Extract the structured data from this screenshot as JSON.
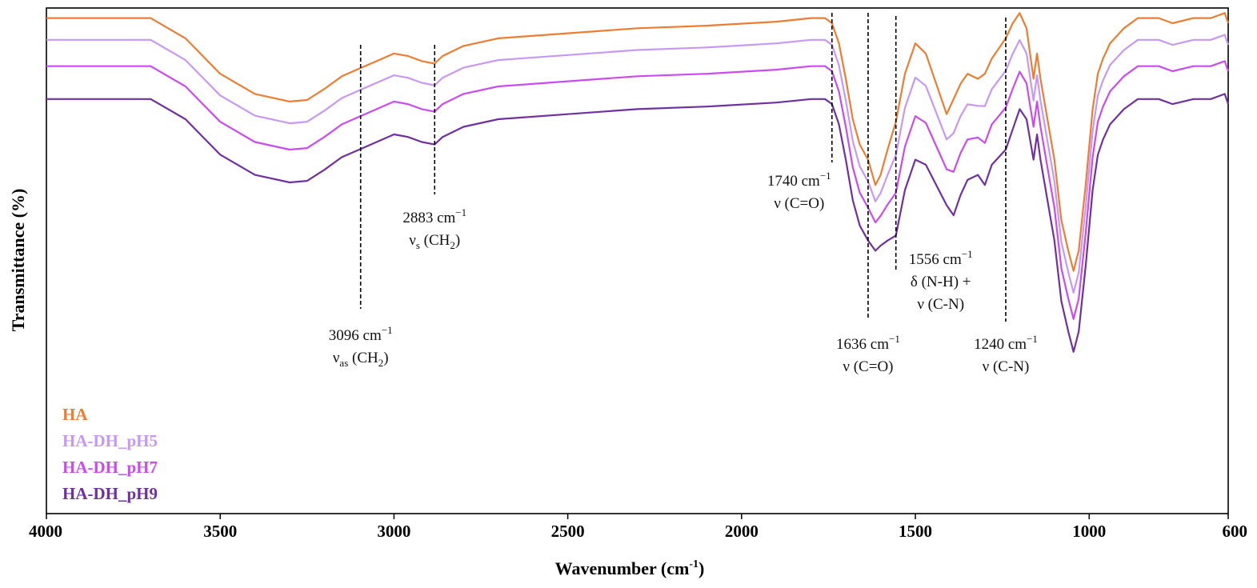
{
  "chart_data": {
    "type": "line",
    "title": "",
    "xlabel": "Wavenumber (cm",
    "xlabel_sup": "-1",
    "xlabel_close": ")",
    "ylabel": "Transmittance (%)",
    "xlim": [
      4000,
      600
    ],
    "ylim": [
      0,
      100
    ],
    "xticks": [
      4000,
      3500,
      3000,
      2500,
      2000,
      1500,
      1000,
      600
    ],
    "legend_position": "bottom-left",
    "series": [
      {
        "name": "HA",
        "color": "#ED7D31",
        "offset": 0,
        "points": [
          [
            4000,
            98
          ],
          [
            3700,
            98
          ],
          [
            3600,
            94
          ],
          [
            3500,
            87
          ],
          [
            3400,
            83
          ],
          [
            3300,
            81.5
          ],
          [
            3250,
            81.8
          ],
          [
            3200,
            84
          ],
          [
            3150,
            86.5
          ],
          [
            3100,
            88
          ],
          [
            3050,
            89.5
          ],
          [
            3000,
            91
          ],
          [
            2960,
            90.5
          ],
          [
            2920,
            89.5
          ],
          [
            2883,
            89
          ],
          [
            2860,
            90.5
          ],
          [
            2800,
            92.5
          ],
          [
            2700,
            94
          ],
          [
            2500,
            95
          ],
          [
            2300,
            96
          ],
          [
            2100,
            96.5
          ],
          [
            1900,
            97.3
          ],
          [
            1800,
            98
          ],
          [
            1760,
            98
          ],
          [
            1740,
            97
          ],
          [
            1720,
            93
          ],
          [
            1700,
            86
          ],
          [
            1680,
            78
          ],
          [
            1660,
            73
          ],
          [
            1636,
            70
          ],
          [
            1615,
            65
          ],
          [
            1600,
            67
          ],
          [
            1580,
            72
          ],
          [
            1556,
            77.5
          ],
          [
            1530,
            87
          ],
          [
            1500,
            93
          ],
          [
            1470,
            91
          ],
          [
            1440,
            85
          ],
          [
            1410,
            79
          ],
          [
            1390,
            82
          ],
          [
            1370,
            85
          ],
          [
            1350,
            87
          ],
          [
            1320,
            86
          ],
          [
            1300,
            87
          ],
          [
            1280,
            90
          ],
          [
            1240,
            94
          ],
          [
            1220,
            97
          ],
          [
            1200,
            99
          ],
          [
            1180,
            96
          ],
          [
            1160,
            86
          ],
          [
            1150,
            91
          ],
          [
            1140,
            86
          ],
          [
            1120,
            78
          ],
          [
            1100,
            70
          ],
          [
            1080,
            58
          ],
          [
            1060,
            52
          ],
          [
            1045,
            48
          ],
          [
            1030,
            52
          ],
          [
            1010,
            65
          ],
          [
            990,
            80
          ],
          [
            975,
            87
          ],
          [
            960,
            90
          ],
          [
            940,
            93
          ],
          [
            900,
            96
          ],
          [
            860,
            98
          ],
          [
            800,
            98
          ],
          [
            760,
            97
          ],
          [
            700,
            98
          ],
          [
            650,
            98
          ],
          [
            610,
            99
          ],
          [
            600,
            97
          ]
        ]
      },
      {
        "name": "HA-DH_pH5",
        "color": "#C898F5",
        "offset": -4.3,
        "points": []
      },
      {
        "name": "HA-DH_pH7",
        "color": "#CB4BF0",
        "offset": -9.5,
        "points": []
      },
      {
        "name": "HA-DH_pH9",
        "color": "#7030A0",
        "offset": -16,
        "points": [
          [
            4000,
            98
          ],
          [
            3700,
            98
          ],
          [
            3600,
            94
          ],
          [
            3500,
            87
          ],
          [
            3400,
            83
          ],
          [
            3300,
            81.5
          ],
          [
            3250,
            81.8
          ],
          [
            3200,
            84
          ],
          [
            3150,
            86.5
          ],
          [
            3100,
            88
          ],
          [
            3050,
            89.5
          ],
          [
            3000,
            91
          ],
          [
            2960,
            90.5
          ],
          [
            2920,
            89.5
          ],
          [
            2883,
            89
          ],
          [
            2860,
            90.5
          ],
          [
            2800,
            92.5
          ],
          [
            2700,
            94
          ],
          [
            2500,
            95
          ],
          [
            2300,
            96
          ],
          [
            2100,
            96.5
          ],
          [
            1900,
            97.3
          ],
          [
            1800,
            98
          ],
          [
            1760,
            98
          ],
          [
            1740,
            97
          ],
          [
            1720,
            93
          ],
          [
            1700,
            86
          ],
          [
            1680,
            78
          ],
          [
            1660,
            73
          ],
          [
            1636,
            70
          ],
          [
            1615,
            68
          ],
          [
            1600,
            69
          ],
          [
            1580,
            70
          ],
          [
            1556,
            71
          ],
          [
            1530,
            80
          ],
          [
            1500,
            86
          ],
          [
            1470,
            85
          ],
          [
            1440,
            81
          ],
          [
            1410,
            77
          ],
          [
            1390,
            75
          ],
          [
            1370,
            79
          ],
          [
            1350,
            82
          ],
          [
            1320,
            83
          ],
          [
            1300,
            81
          ],
          [
            1280,
            85
          ],
          [
            1240,
            88
          ],
          [
            1220,
            92
          ],
          [
            1200,
            96
          ],
          [
            1180,
            94
          ],
          [
            1160,
            86
          ],
          [
            1150,
            91
          ],
          [
            1140,
            86
          ],
          [
            1120,
            78
          ],
          [
            1100,
            70
          ],
          [
            1080,
            58
          ],
          [
            1060,
            52
          ],
          [
            1045,
            48
          ],
          [
            1030,
            52
          ],
          [
            1010,
            65
          ],
          [
            990,
            80
          ],
          [
            975,
            87
          ],
          [
            960,
            90
          ],
          [
            940,
            93
          ],
          [
            900,
            96
          ],
          [
            860,
            98
          ],
          [
            800,
            98
          ],
          [
            760,
            97
          ],
          [
            700,
            98
          ],
          [
            650,
            98
          ],
          [
            610,
            99
          ],
          [
            600,
            97
          ]
        ]
      }
    ],
    "markers": [
      {
        "wavenumber": 3096,
        "line1": "3096 cm",
        "sup": "−1",
        "line2_main": "ν",
        "line2_sub": "as",
        "line2_rest": " (CH",
        "line2_sub2": "2",
        "line2_end": ")"
      },
      {
        "wavenumber": 2883,
        "line1": "2883 cm",
        "sup": "−1",
        "line2_main": "ν",
        "line2_sub": "s",
        "line2_rest": " (CH",
        "line2_sub2": "2",
        "line2_end": ")"
      },
      {
        "wavenumber": 1740,
        "line1": "1740 cm",
        "sup": "−1",
        "line2_main": "ν (C=O)"
      },
      {
        "wavenumber": 1636,
        "line1": "1636 cm",
        "sup": "−1",
        "line2_main": "ν (C=O)"
      },
      {
        "wavenumber": 1556,
        "line1": "1556 cm",
        "sup": "−1",
        "line2_main": "δ (N-H) +",
        "line3": "ν (C-N)"
      },
      {
        "wavenumber": 1240,
        "line1": "1240 cm",
        "sup": "−1",
        "line2_main": "ν (C-N)"
      }
    ]
  }
}
